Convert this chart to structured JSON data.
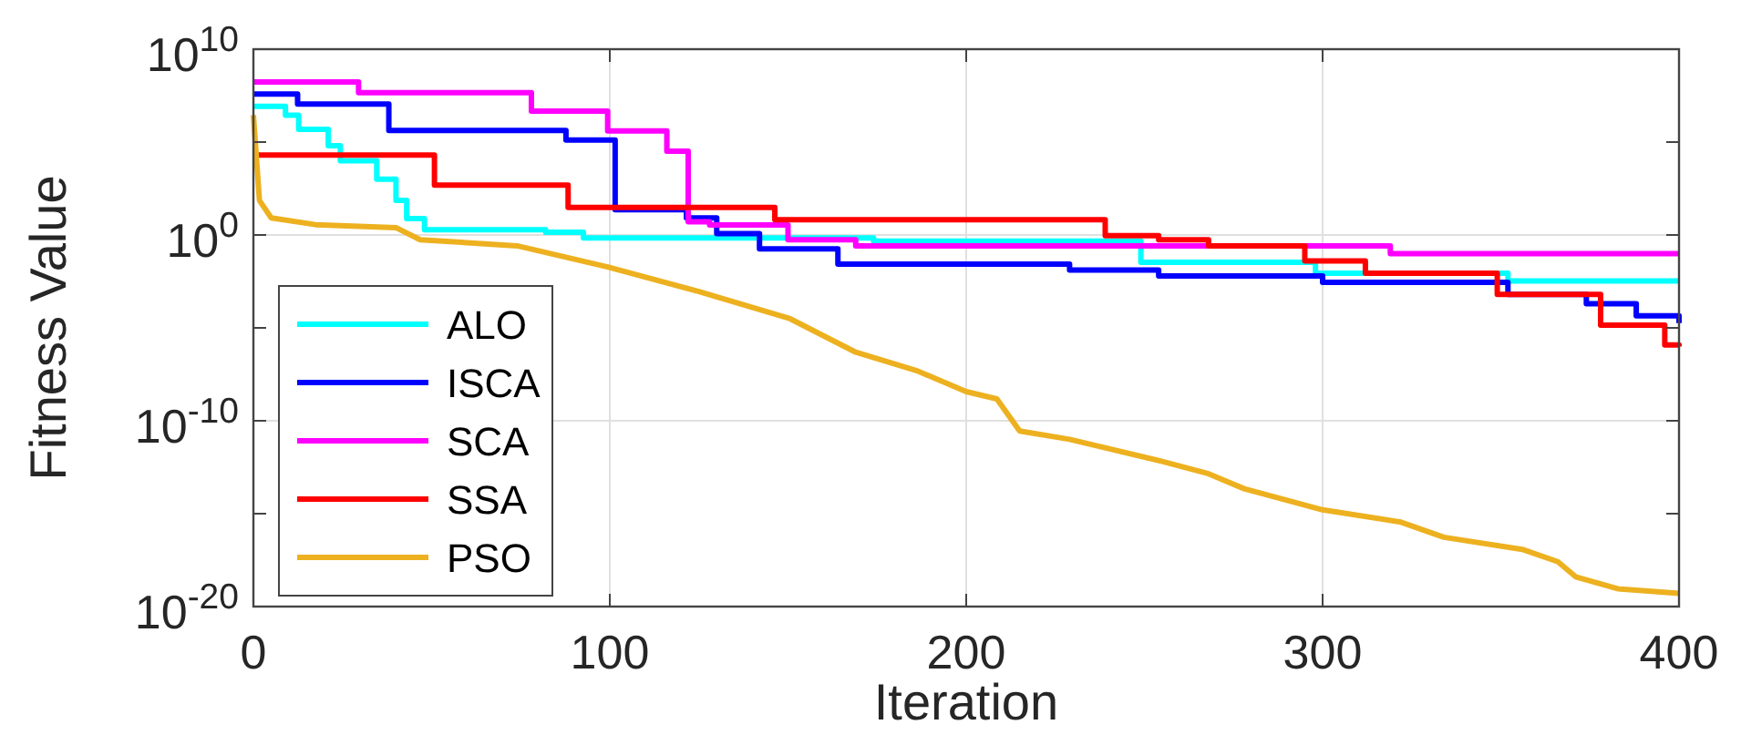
{
  "chart_data": {
    "type": "step",
    "xlabel": "Iteration",
    "ylabel": "Fitness Value",
    "log": "y",
    "grid": true,
    "legend": "bottom left",
    "xlim": [
      0,
      400
    ],
    "xticks": [
      0,
      100,
      200,
      300,
      400
    ],
    "ylim": [
      1e-20,
      10000000000.0
    ],
    "yticks": [
      {
        "value": 1e-20,
        "label": "10$^{-20}$"
      },
      {
        "value": 1e-15,
        "label": null
      },
      {
        "value": 1e-10,
        "label": "10$^{-10}$"
      },
      {
        "value": 1e-05,
        "label": null
      },
      {
        "value": 1,
        "label": "10$^{0}$"
      },
      {
        "value": 100000.0,
        "label": null
      },
      {
        "value": 10000000000.0,
        "label": "10$^{10}$"
      }
    ],
    "series": [
      {
        "name": "ALO",
        "color": "#00ffff",
        "x": [
          0,
          9,
          12.7,
          21,
          24.4,
          34.6,
          40,
          43,
          48,
          82,
          92.6,
          174,
          249,
          298,
          352,
          400
        ],
        "values": [
          8500000.0,
          2800000.0,
          490000.0,
          63000.0,
          9800.0,
          1000.0,
          72,
          7.6,
          1.9,
          1.4,
          0.69,
          0.47,
          0.034,
          0.0087,
          0.0033,
          0.0033
        ]
      },
      {
        "name": "ISCA",
        "color": "#0000ff",
        "x": [
          0,
          12.4,
          38,
          87.7,
          101.5,
          121.5,
          130,
          142,
          164,
          229,
          254,
          300,
          352,
          374,
          388,
          400
        ],
        "values": [
          38000000.0,
          11000000.0,
          420000.0,
          130000.0,
          23,
          8.3,
          1.2,
          0.18,
          0.027,
          0.013,
          0.0063,
          0.0028,
          0.00063,
          0.0002,
          4.5e-05,
          1.8e-05
        ]
      },
      {
        "name": "SCA",
        "color": "#ff00ff",
        "x": [
          0,
          29.5,
          78,
          99.4,
          116,
          122,
          128,
          150,
          169,
          319,
          400
        ],
        "values": [
          170000000.0,
          45000000.0,
          4700000.0,
          400000.0,
          32000.0,
          5.2,
          3.5,
          0.55,
          0.26,
          0.098,
          0.098
        ]
      },
      {
        "name": "SSA",
        "color": "#ff0000",
        "x": [
          0,
          50.8,
          88.3,
          146.3,
          239,
          254,
          268,
          295,
          312,
          349,
          378,
          396,
          400
        ],
        "values": [
          20000.0,
          480,
          30,
          6.6,
          0.93,
          0.55,
          0.26,
          0.04,
          0.0087,
          0.00063,
          1.4e-05,
          1.2e-06,
          1e-06
        ]
      },
      {
        "name": "PSO",
        "color": "#edb120",
        "type": "line",
        "x": [
          0,
          1.7,
          5,
          17.4,
          40,
          46.8,
          74,
          99.4,
          125,
          150.6,
          169,
          186,
          200,
          208.6,
          215,
          229,
          255,
          268,
          278,
          300,
          322,
          334,
          356,
          366,
          371,
          383,
          400
        ],
        "values": [
          2800000.0,
          72,
          8.3,
          3.6,
          2.5,
          0.55,
          0.26,
          0.019,
          0.00091,
          3.1e-05,
          4.9e-07,
          5.1e-08,
          3.7e-09,
          1.5e-09,
          2.8e-11,
          1e-11,
          6.5e-13,
          1.4e-13,
          2.2e-14,
          1.6e-15,
          3.5e-16,
          5.4e-17,
          1.2e-17,
          2.6e-18,
          4e-19,
          8.9e-20,
          5.2e-20
        ]
      }
    ]
  }
}
